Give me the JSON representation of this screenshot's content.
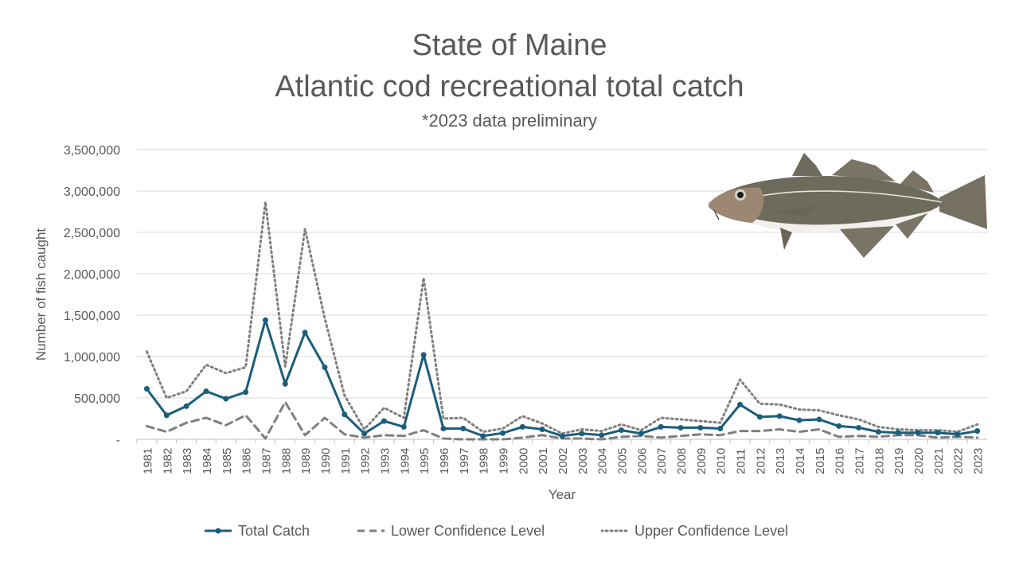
{
  "title_line1": "State of Maine",
  "title_line2": "Atlantic cod recreational total catch",
  "subtitle": "*2023 data preliminary",
  "colors": {
    "total": "#1b5e7b",
    "lower": "#7f7f7f",
    "upper": "#7f7f7f",
    "grid": "#d9d9d9",
    "text": "#595959"
  },
  "chart_data": {
    "type": "line",
    "title": "State of Maine Atlantic cod recreational total catch",
    "subtitle": "*2023 data preliminary",
    "xlabel": "Year",
    "ylabel": "Number of fish caught",
    "ylim": [
      0,
      3500000
    ],
    "yticks": [
      0,
      500000,
      1000000,
      1500000,
      2000000,
      2500000,
      3000000,
      3500000
    ],
    "ytick_labels": [
      "-",
      "500,000",
      "1,000,000",
      "1,500,000",
      "2,000,000",
      "2,500,000",
      "3,000,000",
      "3,500,000"
    ],
    "grid": "horizontal",
    "legend_position": "bottom",
    "categories": [
      "1981",
      "1982",
      "1983",
      "1984",
      "1985",
      "1986",
      "1987",
      "1988",
      "1989",
      "1990",
      "1991",
      "1992",
      "1993",
      "1994",
      "1995",
      "1996",
      "1997",
      "1998",
      "1999",
      "2000",
      "2001",
      "2002",
      "2003",
      "2004",
      "2005",
      "2006",
      "2007",
      "2008",
      "2009",
      "2010",
      "2011",
      "2012",
      "2013",
      "2014",
      "2015",
      "2016",
      "2017",
      "2018",
      "2019",
      "2020",
      "2021",
      "2022",
      "2023"
    ],
    "series": [
      {
        "name": "Total Catch",
        "style": "solid-markers",
        "values": [
          610000,
          290000,
          400000,
          580000,
          490000,
          570000,
          1440000,
          670000,
          1290000,
          870000,
          300000,
          70000,
          220000,
          150000,
          1020000,
          130000,
          130000,
          40000,
          75000,
          150000,
          120000,
          40000,
          70000,
          50000,
          110000,
          70000,
          150000,
          140000,
          140000,
          130000,
          420000,
          270000,
          280000,
          230000,
          240000,
          160000,
          140000,
          90000,
          80000,
          80000,
          80000,
          60000,
          100000
        ]
      },
      {
        "name": "Lower Confidence Level",
        "style": "dashed",
        "values": [
          160000,
          90000,
          200000,
          260000,
          170000,
          290000,
          10000,
          450000,
          50000,
          260000,
          60000,
          20000,
          50000,
          40000,
          110000,
          10000,
          0,
          0,
          0,
          20000,
          50000,
          10000,
          10000,
          0,
          30000,
          40000,
          20000,
          40000,
          60000,
          50000,
          100000,
          100000,
          120000,
          90000,
          120000,
          30000,
          40000,
          30000,
          50000,
          50000,
          20000,
          30000,
          20000
        ]
      },
      {
        "name": "Upper Confidence Level",
        "style": "dotted",
        "values": [
          1060000,
          500000,
          580000,
          900000,
          800000,
          870000,
          2870000,
          880000,
          2540000,
          1460000,
          530000,
          120000,
          380000,
          260000,
          1950000,
          250000,
          260000,
          90000,
          130000,
          280000,
          190000,
          70000,
          120000,
          100000,
          180000,
          110000,
          260000,
          240000,
          220000,
          200000,
          720000,
          430000,
          420000,
          360000,
          350000,
          290000,
          240000,
          150000,
          120000,
          110000,
          110000,
          90000,
          180000
        ]
      }
    ]
  }
}
